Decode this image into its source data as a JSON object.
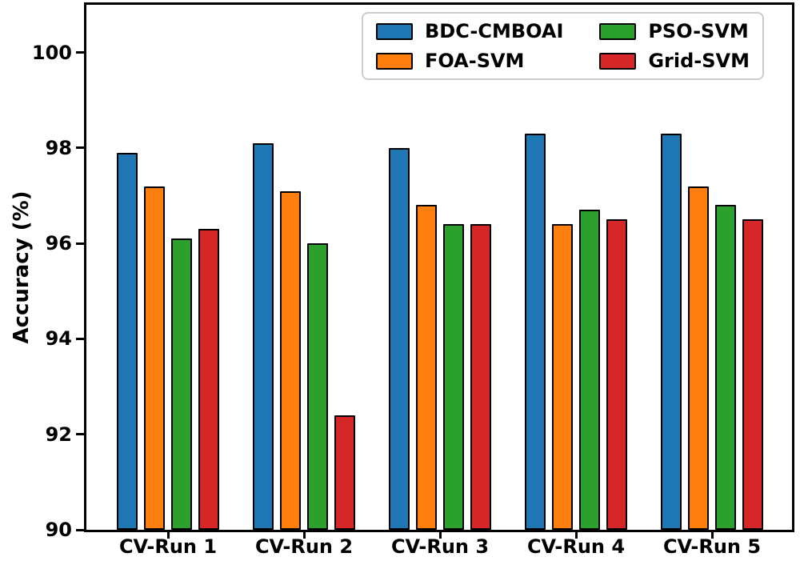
{
  "chart_data": {
    "type": "bar",
    "ylabel": "Accuracy (%)",
    "categories": [
      "CV-Run 1",
      "CV-Run 2",
      "CV-Run 3",
      "CV-Run 4",
      "CV-Run 5"
    ],
    "series": [
      {
        "name": "BDC-CMBOAI",
        "color": "#1f77b4",
        "values": [
          97.9,
          98.1,
          98.0,
          98.3,
          98.3
        ]
      },
      {
        "name": "FOA-SVM",
        "color": "#ff7f0e",
        "values": [
          97.2,
          97.1,
          96.8,
          96.4,
          97.2
        ]
      },
      {
        "name": "PSO-SVM",
        "color": "#2ca02c",
        "values": [
          96.1,
          96.0,
          96.4,
          96.7,
          96.8
        ]
      },
      {
        "name": "Grid-SVM",
        "color": "#d62728",
        "values": [
          96.3,
          92.4,
          96.4,
          96.5,
          96.5
        ]
      }
    ],
    "ylim": [
      90,
      101
    ],
    "yticks": [
      90,
      92,
      94,
      96,
      98,
      100
    ],
    "grid": false,
    "legend_position": "upper-right",
    "bar_edge_color": "#000000",
    "axis_color": "#000000",
    "background_color": "#ffffff"
  }
}
